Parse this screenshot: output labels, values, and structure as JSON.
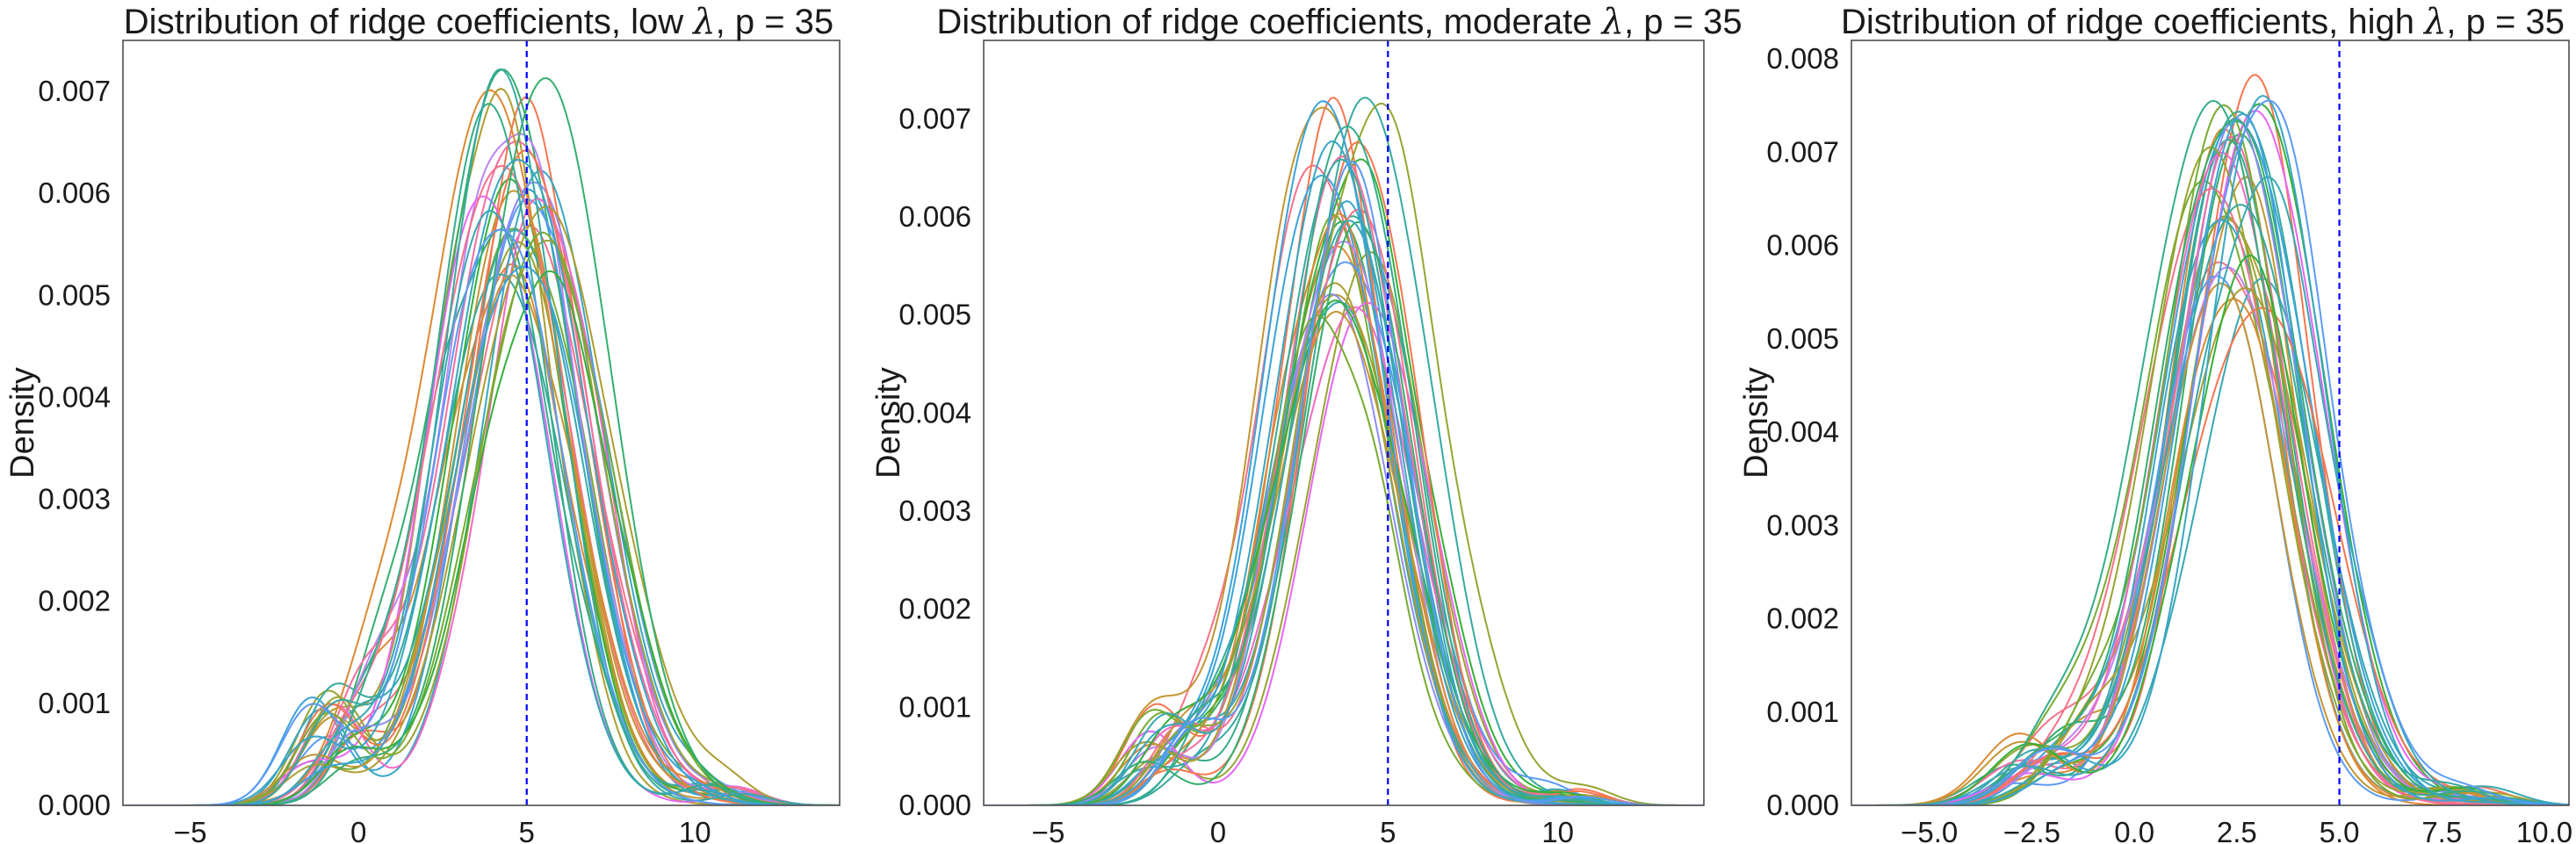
{
  "chart_data": [
    {
      "type": "line",
      "title": "Distribution of ridge coefficients, low λ, p = 35",
      "title_parts": [
        "Distribution of ridge coefficients, low ",
        "λ",
        ", p = 35"
      ],
      "xlabel": "",
      "ylabel": "Density",
      "xlim": [
        -7,
        14.3
      ],
      "ylim": [
        0,
        0.0075
      ],
      "xticks": [
        -5,
        0,
        5,
        10
      ],
      "xtick_labels": [
        "−5",
        "0",
        "5",
        "10"
      ],
      "yticks": [
        0,
        0.001,
        0.002,
        0.003,
        0.004,
        0.005,
        0.006,
        0.007
      ],
      "ytick_labels": [
        "0.000",
        "0.001",
        "0.002",
        "0.003",
        "0.004",
        "0.005",
        "0.006",
        "0.007"
      ],
      "reference_line": {
        "x": 5,
        "color": "#0000ff",
        "style": "dashed"
      },
      "grid": false,
      "legend": "none",
      "n_series": 35,
      "series_summary": {
        "peak_x_range": [
          3.8,
          5.6
        ],
        "peak_density_range": [
          0.0051,
          0.0072
        ],
        "spread": 1.9,
        "left_bump": {
          "x": -0.5,
          "density": 0.0011
        },
        "right_bump": {
          "x": 10.7,
          "density": 0.0002
        }
      }
    },
    {
      "type": "line",
      "title": "Distribution of ridge coefficients, moderate λ, p = 35",
      "title_parts": [
        "Distribution of ridge coefficients, moderate ",
        "λ",
        ", p = 35"
      ],
      "xlabel": "",
      "ylabel": "Density",
      "xlim": [
        -6.9,
        14.3
      ],
      "ylim": [
        0,
        0.0078
      ],
      "xticks": [
        -5,
        0,
        5,
        10
      ],
      "xtick_labels": [
        "−5",
        "0",
        "5",
        "10"
      ],
      "yticks": [
        0,
        0.001,
        0.002,
        0.003,
        0.004,
        0.005,
        0.006,
        0.007
      ],
      "ytick_labels": [
        "0.000",
        "0.001",
        "0.002",
        "0.003",
        "0.004",
        "0.005",
        "0.006",
        "0.007"
      ],
      "reference_line": {
        "x": 5,
        "color": "#0000ff",
        "style": "dashed"
      },
      "grid": false,
      "legend": "none",
      "n_series": 35,
      "series_summary": {
        "peak_x_range": [
          3.0,
          4.6
        ],
        "peak_density_range": [
          0.0049,
          0.0073
        ],
        "spread": 1.8,
        "left_bump": {
          "x": -1.2,
          "density": 0.001
        },
        "right_bump": {
          "x": 10.3,
          "density": 0.0002
        }
      }
    },
    {
      "type": "line",
      "title": "Distribution of ridge coefficients, high λ, p = 35",
      "title_parts": [
        "Distribution of ridge coefficients, high ",
        "λ",
        ", p = 35"
      ],
      "xlabel": "",
      "ylabel": "Density",
      "xlim": [
        -6.9,
        10.6
      ],
      "ylim": [
        0,
        0.0082
      ],
      "xticks": [
        -5,
        -2.5,
        0,
        2.5,
        5,
        7.5,
        10
      ],
      "xtick_labels": [
        "−5.0",
        "−2.5",
        "0.0",
        "2.5",
        "5.0",
        "7.5",
        "10.0"
      ],
      "yticks": [
        0,
        0.001,
        0.002,
        0.003,
        0.004,
        0.005,
        0.006,
        0.007,
        0.008
      ],
      "ytick_labels": [
        "0.000",
        "0.001",
        "0.002",
        "0.003",
        "0.004",
        "0.005",
        "0.006",
        "0.007",
        "0.008"
      ],
      "reference_line": {
        "x": 5,
        "color": "#0000ff",
        "style": "dashed"
      },
      "grid": false,
      "legend": "none",
      "n_series": 35,
      "series_summary": {
        "peak_x_range": [
          1.8,
          3.2
        ],
        "peak_density_range": [
          0.0055,
          0.0078
        ],
        "spread": 1.55,
        "left_bump": {
          "x": -2.0,
          "density": 0.0008
        },
        "right_bump": {
          "x": 8.0,
          "density": 0.0002
        }
      }
    }
  ],
  "series_colors": [
    "#f77189",
    "#f7754f",
    "#dc8932",
    "#c39532",
    "#ae9d31",
    "#97a431",
    "#77ab31",
    "#33b039",
    "#34ae6d",
    "#35ac8b",
    "#36aa9f",
    "#37a8b1",
    "#38a6c3",
    "#3ba3d9",
    "#5b9af5",
    "#8f8df5",
    "#bb83f4",
    "#e866f4",
    "#f668c2",
    "#f56ea1"
  ]
}
